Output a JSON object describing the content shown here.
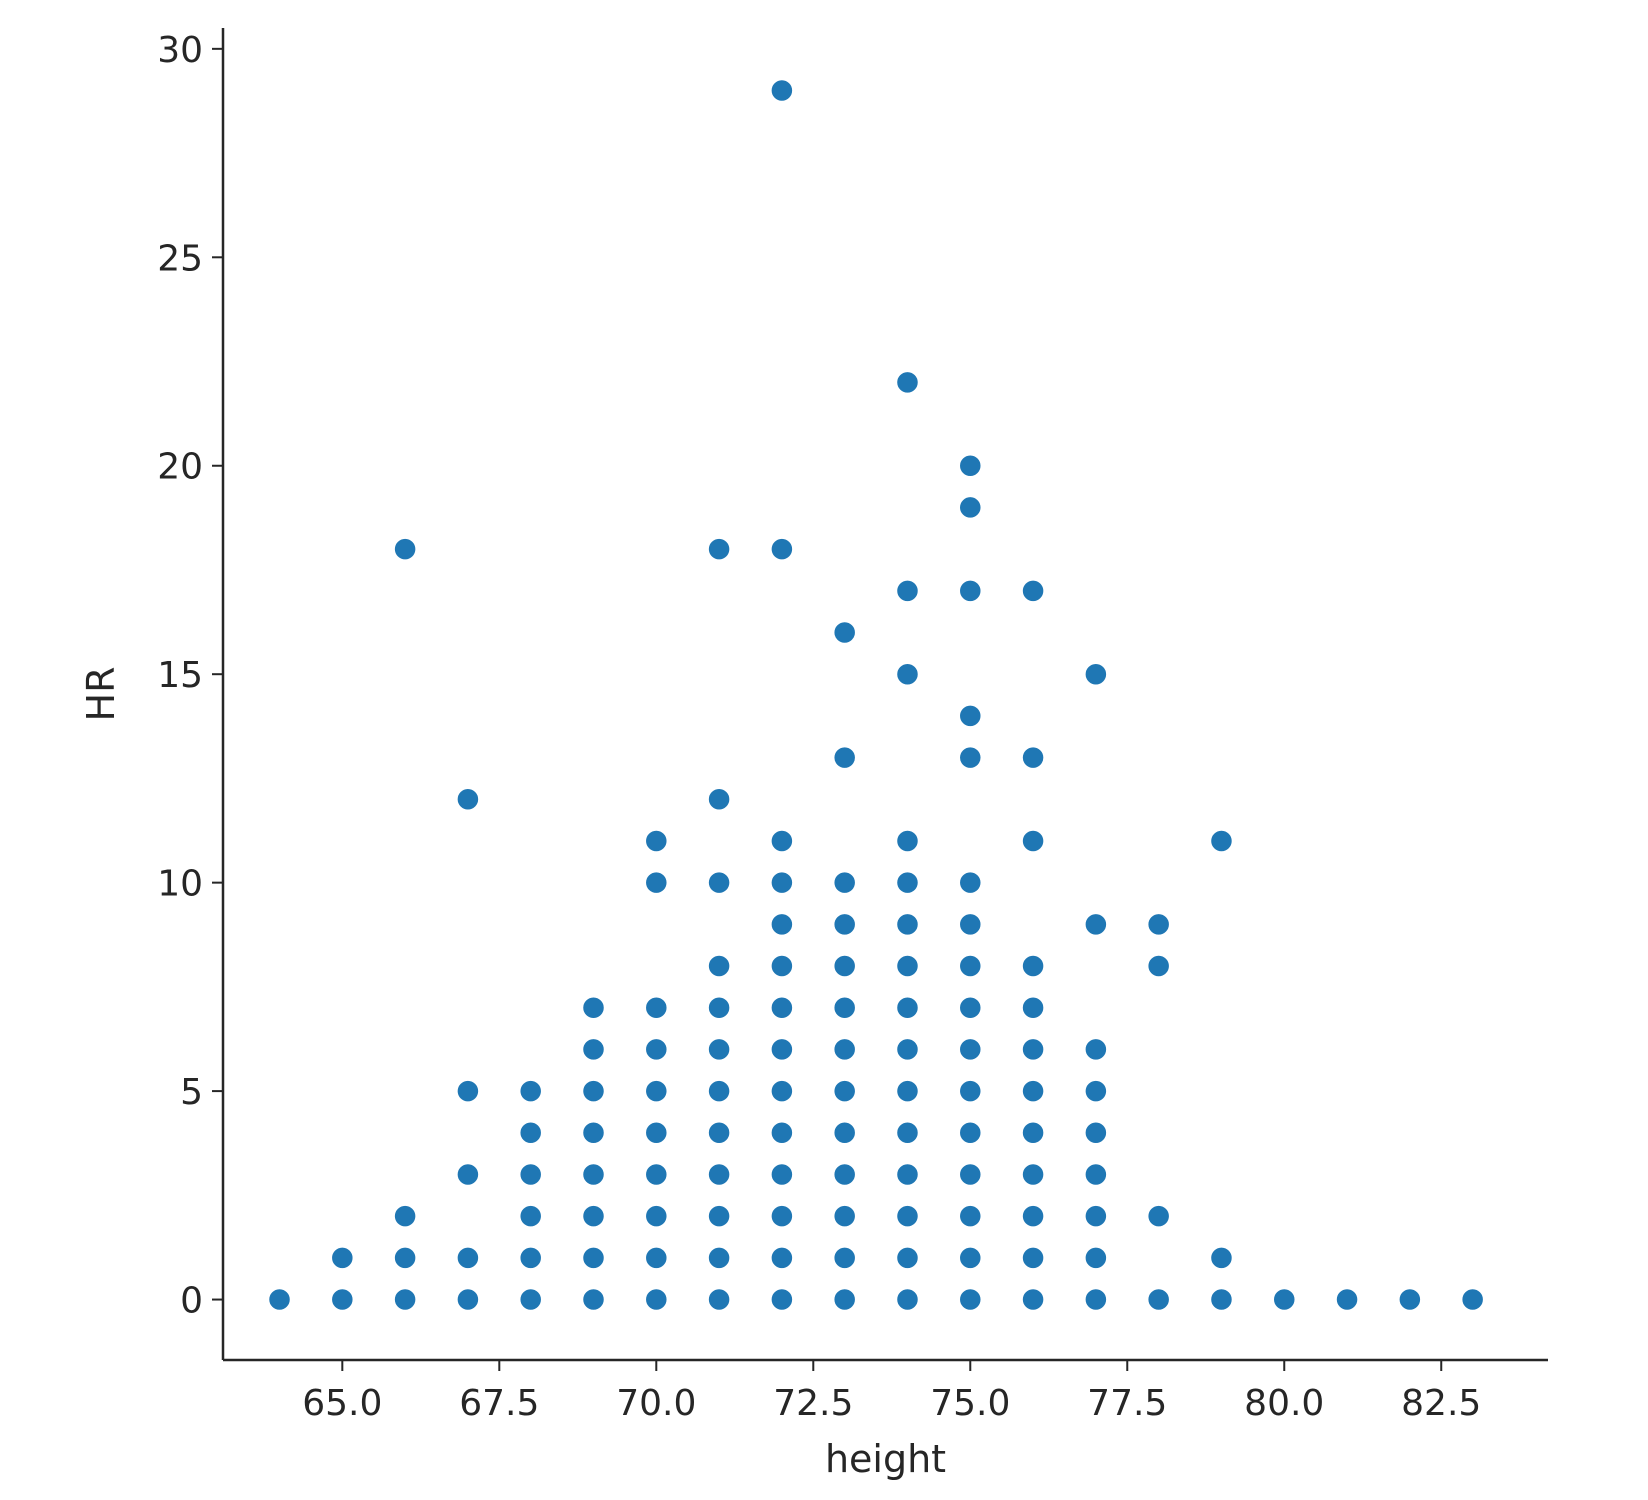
{
  "chart_data": {
    "type": "scatter",
    "xlabel": "height",
    "ylabel": "HR",
    "xlim": [
      63.1,
      84.2
    ],
    "ylim": [
      -1.45,
      30.5
    ],
    "xticks": [
      65.0,
      67.5,
      70.0,
      72.5,
      75.0,
      77.5,
      80.0,
      82.5
    ],
    "xtick_labels": [
      "65.0",
      "67.5",
      "70.0",
      "72.5",
      "75.0",
      "77.5",
      "80.0",
      "82.5"
    ],
    "yticks": [
      0,
      5,
      10,
      15,
      20,
      25,
      30
    ],
    "ytick_labels": [
      "0",
      "5",
      "10",
      "15",
      "20",
      "25",
      "30"
    ],
    "grid": false,
    "marker_color": "#1f77b4",
    "axis_color": "#262626",
    "points": [
      [
        64,
        0
      ],
      [
        65,
        0
      ],
      [
        65,
        1
      ],
      [
        66,
        0
      ],
      [
        66,
        1
      ],
      [
        66,
        2
      ],
      [
        66,
        18
      ],
      [
        67,
        0
      ],
      [
        67,
        1
      ],
      [
        67,
        3
      ],
      [
        67,
        5
      ],
      [
        67,
        12
      ],
      [
        68,
        0
      ],
      [
        68,
        1
      ],
      [
        68,
        2
      ],
      [
        68,
        3
      ],
      [
        68,
        4
      ],
      [
        68,
        5
      ],
      [
        69,
        0
      ],
      [
        69,
        1
      ],
      [
        69,
        2
      ],
      [
        69,
        3
      ],
      [
        69,
        4
      ],
      [
        69,
        5
      ],
      [
        69,
        6
      ],
      [
        69,
        7
      ],
      [
        70,
        0
      ],
      [
        70,
        1
      ],
      [
        70,
        2
      ],
      [
        70,
        3
      ],
      [
        70,
        4
      ],
      [
        70,
        5
      ],
      [
        70,
        6
      ],
      [
        70,
        7
      ],
      [
        70,
        10
      ],
      [
        70,
        11
      ],
      [
        71,
        0
      ],
      [
        71,
        1
      ],
      [
        71,
        2
      ],
      [
        71,
        3
      ],
      [
        71,
        4
      ],
      [
        71,
        5
      ],
      [
        71,
        6
      ],
      [
        71,
        7
      ],
      [
        71,
        8
      ],
      [
        71,
        10
      ],
      [
        71,
        12
      ],
      [
        71,
        18
      ],
      [
        72,
        0
      ],
      [
        72,
        1
      ],
      [
        72,
        2
      ],
      [
        72,
        3
      ],
      [
        72,
        4
      ],
      [
        72,
        5
      ],
      [
        72,
        6
      ],
      [
        72,
        7
      ],
      [
        72,
        8
      ],
      [
        72,
        9
      ],
      [
        72,
        10
      ],
      [
        72,
        11
      ],
      [
        72,
        18
      ],
      [
        72,
        29
      ],
      [
        73,
        0
      ],
      [
        73,
        1
      ],
      [
        73,
        2
      ],
      [
        73,
        3
      ],
      [
        73,
        4
      ],
      [
        73,
        5
      ],
      [
        73,
        6
      ],
      [
        73,
        7
      ],
      [
        73,
        8
      ],
      [
        73,
        9
      ],
      [
        73,
        10
      ],
      [
        73,
        13
      ],
      [
        73,
        16
      ],
      [
        74,
        0
      ],
      [
        74,
        1
      ],
      [
        74,
        2
      ],
      [
        74,
        3
      ],
      [
        74,
        4
      ],
      [
        74,
        5
      ],
      [
        74,
        6
      ],
      [
        74,
        7
      ],
      [
        74,
        8
      ],
      [
        74,
        9
      ],
      [
        74,
        10
      ],
      [
        74,
        11
      ],
      [
        74,
        15
      ],
      [
        74,
        17
      ],
      [
        74,
        22
      ],
      [
        75,
        0
      ],
      [
        75,
        1
      ],
      [
        75,
        2
      ],
      [
        75,
        3
      ],
      [
        75,
        4
      ],
      [
        75,
        5
      ],
      [
        75,
        6
      ],
      [
        75,
        7
      ],
      [
        75,
        8
      ],
      [
        75,
        9
      ],
      [
        75,
        10
      ],
      [
        75,
        13
      ],
      [
        75,
        14
      ],
      [
        75,
        17
      ],
      [
        75,
        19
      ],
      [
        75,
        20
      ],
      [
        76,
        0
      ],
      [
        76,
        1
      ],
      [
        76,
        2
      ],
      [
        76,
        3
      ],
      [
        76,
        4
      ],
      [
        76,
        5
      ],
      [
        76,
        6
      ],
      [
        76,
        7
      ],
      [
        76,
        8
      ],
      [
        76,
        11
      ],
      [
        76,
        13
      ],
      [
        76,
        17
      ],
      [
        77,
        0
      ],
      [
        77,
        1
      ],
      [
        77,
        2
      ],
      [
        77,
        3
      ],
      [
        77,
        4
      ],
      [
        77,
        5
      ],
      [
        77,
        6
      ],
      [
        77,
        9
      ],
      [
        77,
        15
      ],
      [
        78,
        0
      ],
      [
        78,
        2
      ],
      [
        78,
        8
      ],
      [
        78,
        9
      ],
      [
        79,
        0
      ],
      [
        79,
        1
      ],
      [
        79,
        11
      ],
      [
        80,
        0
      ],
      [
        81,
        0
      ],
      [
        82,
        0
      ],
      [
        83,
        0
      ]
    ]
  }
}
